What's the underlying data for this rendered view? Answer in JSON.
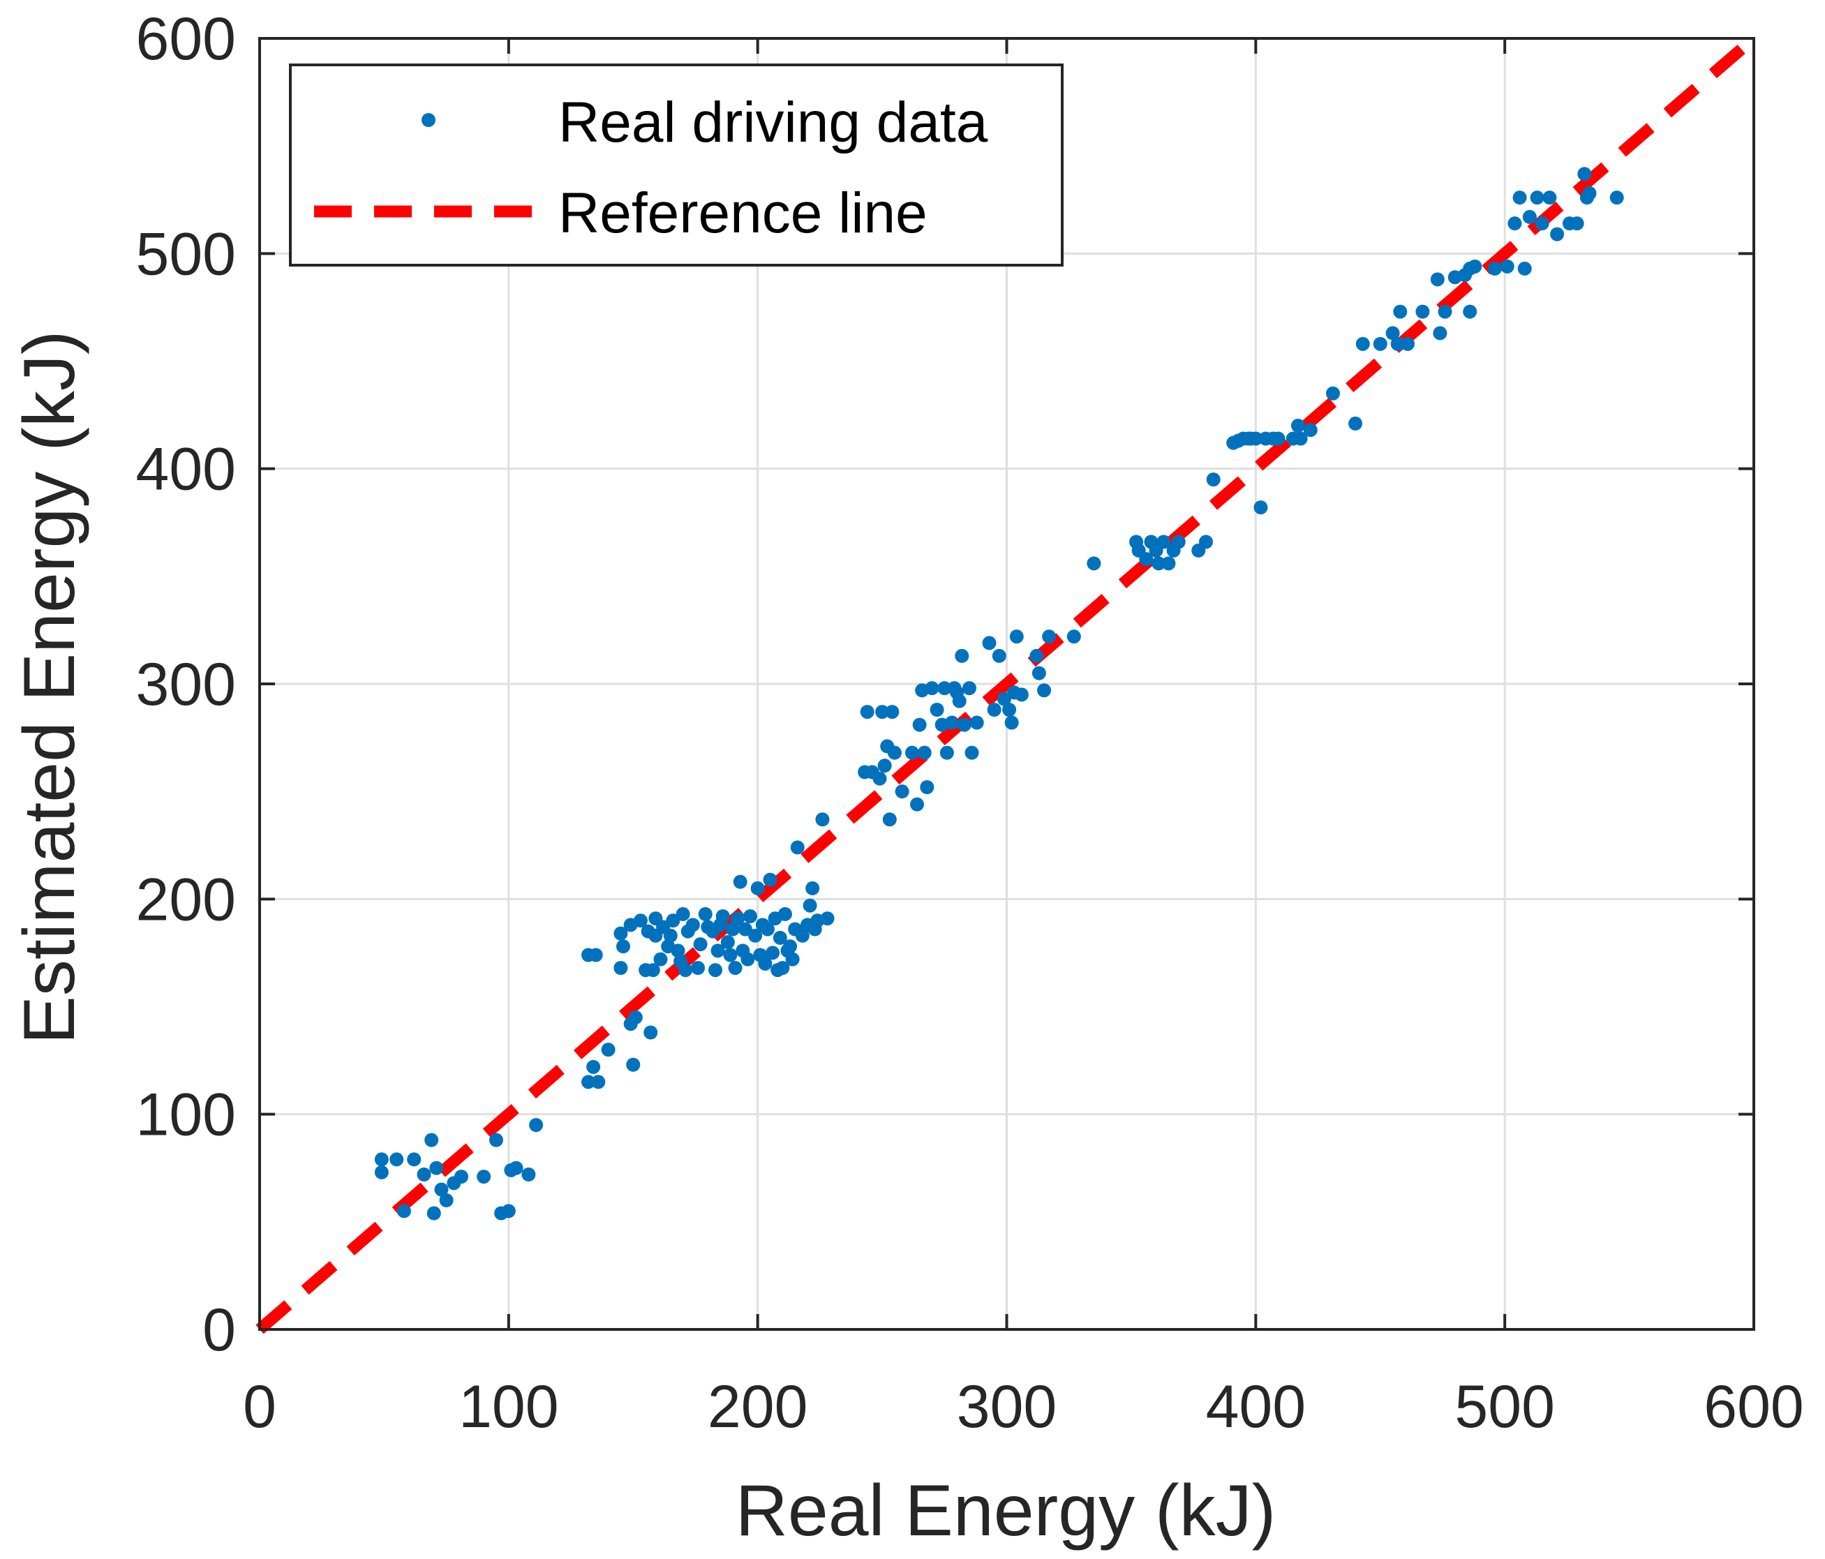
{
  "chart_data": {
    "type": "scatter",
    "title": "",
    "xlabel": "Real Energy (kJ)",
    "ylabel": "Estimated Energy (kJ)",
    "xlim": [
      0,
      600
    ],
    "ylim": [
      0,
      600
    ],
    "xticks": [
      0,
      100,
      200,
      300,
      400,
      500,
      600
    ],
    "yticks": [
      0,
      100,
      200,
      300,
      400,
      500,
      600
    ],
    "xtick_labels": [
      "0",
      "100",
      "200",
      "300",
      "400",
      "500",
      "600"
    ],
    "ytick_labels": [
      "0",
      "100",
      "200",
      "300",
      "400",
      "500",
      "600"
    ],
    "grid": true,
    "legend_position": "top-left",
    "colors": {
      "points": "#0072BD",
      "reference": "#FF0000",
      "grid": "#DFDFDF",
      "axes": "#262626"
    },
    "series": [
      {
        "name": "Real driving data",
        "kind": "points",
        "points": [
          [
            49,
            73
          ],
          [
            49,
            79
          ],
          [
            55,
            79
          ],
          [
            58,
            55
          ],
          [
            62,
            79
          ],
          [
            66,
            72
          ],
          [
            69,
            88
          ],
          [
            70,
            54
          ],
          [
            71,
            75
          ],
          [
            73,
            65
          ],
          [
            75,
            60
          ],
          [
            78,
            68
          ],
          [
            81,
            71
          ],
          [
            90,
            71
          ],
          [
            95,
            88
          ],
          [
            97,
            54
          ],
          [
            100,
            55
          ],
          [
            101,
            74
          ],
          [
            103,
            75
          ],
          [
            108,
            72
          ],
          [
            111,
            95
          ],
          [
            132,
            115
          ],
          [
            132,
            174
          ],
          [
            134,
            122
          ],
          [
            135,
            174
          ],
          [
            136,
            115
          ],
          [
            140,
            130
          ],
          [
            145,
            168
          ],
          [
            145,
            184
          ],
          [
            146,
            178
          ],
          [
            149,
            188
          ],
          [
            149,
            142
          ],
          [
            150,
            123
          ],
          [
            151,
            145
          ],
          [
            153,
            190
          ],
          [
            155,
            167
          ],
          [
            156,
            185
          ],
          [
            157,
            138
          ],
          [
            158,
            167
          ],
          [
            159,
            183
          ],
          [
            159,
            191
          ],
          [
            161,
            172
          ],
          [
            162,
            187
          ],
          [
            164,
            178
          ],
          [
            165,
            183
          ],
          [
            166,
            190
          ],
          [
            168,
            176
          ],
          [
            169,
            171
          ],
          [
            170,
            193
          ],
          [
            171,
            167
          ],
          [
            172,
            185
          ],
          [
            174,
            188
          ],
          [
            176,
            168
          ],
          [
            177,
            179
          ],
          [
            179,
            193
          ],
          [
            180,
            187
          ],
          [
            182,
            185
          ],
          [
            183,
            167
          ],
          [
            184,
            176
          ],
          [
            185,
            188
          ],
          [
            186,
            192
          ],
          [
            188,
            180
          ],
          [
            189,
            174
          ],
          [
            190,
            186
          ],
          [
            191,
            168
          ],
          [
            192,
            191
          ],
          [
            193,
            208
          ],
          [
            194,
            176
          ],
          [
            195,
            186
          ],
          [
            196,
            172
          ],
          [
            197,
            192
          ],
          [
            199,
            183
          ],
          [
            200,
            205
          ],
          [
            201,
            174
          ],
          [
            202,
            188
          ],
          [
            203,
            170
          ],
          [
            204,
            186
          ],
          [
            205,
            209
          ],
          [
            206,
            175
          ],
          [
            207,
            191
          ],
          [
            208,
            167
          ],
          [
            209,
            182
          ],
          [
            210,
            168
          ],
          [
            211,
            193
          ],
          [
            212,
            176
          ],
          [
            213,
            178
          ],
          [
            214,
            172
          ],
          [
            215,
            186
          ],
          [
            216,
            224
          ],
          [
            218,
            183
          ],
          [
            220,
            188
          ],
          [
            221,
            197
          ],
          [
            222,
            205
          ],
          [
            223,
            186
          ],
          [
            224,
            190
          ],
          [
            226,
            237
          ],
          [
            228,
            191
          ],
          [
            243,
            259
          ],
          [
            244,
            287
          ],
          [
            246,
            259
          ],
          [
            249,
            256
          ],
          [
            250,
            287
          ],
          [
            251,
            262
          ],
          [
            252,
            271
          ],
          [
            253,
            237
          ],
          [
            254,
            287
          ],
          [
            255,
            268
          ],
          [
            258,
            250
          ],
          [
            262,
            268
          ],
          [
            264,
            244
          ],
          [
            265,
            281
          ],
          [
            266,
            297
          ],
          [
            267,
            268
          ],
          [
            268,
            252
          ],
          [
            270,
            298
          ],
          [
            272,
            288
          ],
          [
            274,
            281
          ],
          [
            275,
            298
          ],
          [
            276,
            268
          ],
          [
            278,
            282
          ],
          [
            279,
            298
          ],
          [
            280,
            296
          ],
          [
            281,
            292
          ],
          [
            282,
            313
          ],
          [
            283,
            281
          ],
          [
            285,
            298
          ],
          [
            286,
            268
          ],
          [
            288,
            282
          ],
          [
            293,
            319
          ],
          [
            295,
            288
          ],
          [
            297,
            313
          ],
          [
            299,
            293
          ],
          [
            301,
            288
          ],
          [
            302,
            282
          ],
          [
            303,
            296
          ],
          [
            304,
            322
          ],
          [
            306,
            295
          ],
          [
            312,
            313
          ],
          [
            313,
            305
          ],
          [
            315,
            297
          ],
          [
            317,
            322
          ],
          [
            327,
            322
          ],
          [
            335,
            356
          ],
          [
            352,
            366
          ],
          [
            353,
            362
          ],
          [
            356,
            358
          ],
          [
            358,
            366
          ],
          [
            360,
            362
          ],
          [
            361,
            356
          ],
          [
            363,
            366
          ],
          [
            365,
            356
          ],
          [
            367,
            362
          ],
          [
            369,
            366
          ],
          [
            377,
            362
          ],
          [
            380,
            366
          ],
          [
            383,
            395
          ],
          [
            391,
            412
          ],
          [
            393,
            413
          ],
          [
            395,
            414
          ],
          [
            397,
            414
          ],
          [
            398,
            414
          ],
          [
            400,
            414
          ],
          [
            402,
            382
          ],
          [
            404,
            414
          ],
          [
            407,
            414
          ],
          [
            409,
            414
          ],
          [
            415,
            414
          ],
          [
            417,
            420
          ],
          [
            418,
            414
          ],
          [
            422,
            418
          ],
          [
            431,
            435
          ],
          [
            440,
            421
          ],
          [
            443,
            458
          ],
          [
            450,
            458
          ],
          [
            455,
            463
          ],
          [
            457,
            458
          ],
          [
            458,
            473
          ],
          [
            461,
            458
          ],
          [
            467,
            473
          ],
          [
            473,
            488
          ],
          [
            474,
            463
          ],
          [
            476,
            473
          ],
          [
            480,
            489
          ],
          [
            484,
            490
          ],
          [
            486,
            493
          ],
          [
            486,
            473
          ],
          [
            488,
            494
          ],
          [
            496,
            493
          ],
          [
            501,
            494
          ],
          [
            504,
            514
          ],
          [
            506,
            526
          ],
          [
            508,
            493
          ],
          [
            510,
            517
          ],
          [
            513,
            526
          ],
          [
            515,
            514
          ],
          [
            518,
            526
          ],
          [
            521,
            509
          ],
          [
            526,
            514
          ],
          [
            529,
            514
          ],
          [
            532,
            537
          ],
          [
            533,
            526
          ],
          [
            534,
            528
          ],
          [
            545,
            526
          ]
        ]
      },
      {
        "name": "Reference line",
        "kind": "line",
        "x": [
          0,
          600
        ],
        "y": [
          0,
          600
        ]
      }
    ]
  }
}
